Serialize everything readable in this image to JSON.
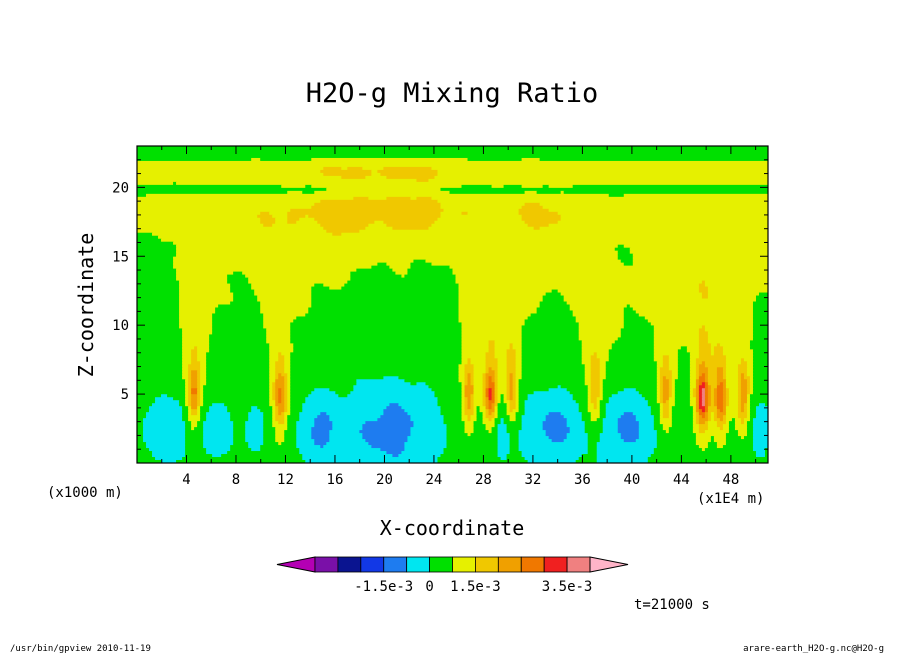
{
  "chart_data": {
    "type": "heatmap",
    "title": "H2O-g Mixing Ratio",
    "xlabel": "X-coordinate",
    "ylabel": "Z-coordinate",
    "x_unit": "(x1E4 m)",
    "z_unit": "(x1000 m)",
    "xlim": [
      0,
      51
    ],
    "ylim": [
      0,
      23
    ],
    "x_ticks": [
      4,
      8,
      12,
      16,
      20,
      24,
      28,
      32,
      36,
      40,
      44,
      48
    ],
    "x_minor_ticks": [
      2,
      6,
      10,
      14,
      18,
      22,
      26,
      30,
      34,
      38,
      42,
      46,
      50
    ],
    "y_ticks": [
      5,
      10,
      15,
      20
    ],
    "time_label": "t=21000 s",
    "colorbar": {
      "levels_count": 12,
      "tick_labels": [
        "-1.5e-3",
        "0",
        "1.5e-3",
        "3.5e-3"
      ],
      "tick_values": [
        -0.0015,
        0,
        0.0015,
        0.0035
      ],
      "colors": [
        "#b400b4",
        "#7a10a8",
        "#0a1490",
        "#1238e6",
        "#1e7cf0",
        "#00e6f0",
        "#00e000",
        "#e6f000",
        "#f0c800",
        "#f0a000",
        "#f07800",
        "#f02020",
        "#f08080",
        "#ffb4c8"
      ]
    },
    "field_description_regions": {
      "background_level": "0",
      "low_level_dry_bands": [
        [
          1.5,
          4.5
        ],
        [
          12.5,
          26
        ],
        [
          28,
          34.5
        ],
        [
          34.5,
          42.5
        ],
        [
          48.5,
          51
        ]
      ],
      "moist_plumes_x": [
        4.5,
        11.5,
        26.8,
        28.6,
        30.3,
        37,
        42.7,
        45.7,
        47.2,
        49
      ]
    }
  },
  "footer": {
    "left": "/usr/bin/gpview  2010-11-19",
    "right": "arare-earth_H2O-g.nc@H2O-g"
  }
}
